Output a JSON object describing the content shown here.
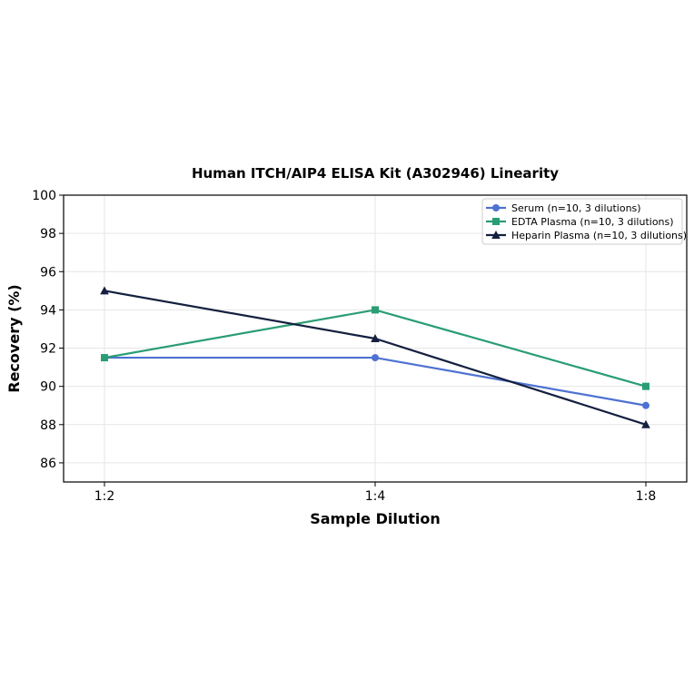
{
  "colors": {
    "serum": "#4e72d1",
    "edta": "#2a9d74",
    "heparin": "#14203f",
    "grid": "#e6e6e6",
    "axis": "#000000",
    "legend_border": "#cccccc"
  },
  "chart_data": {
    "type": "line",
    "title": "Human ITCH/AIP4 ELISA Kit (A302946) Linearity",
    "xlabel": "Sample Dilution",
    "ylabel": "Recovery (%)",
    "categories": [
      "1:2",
      "1:4",
      "1:8"
    ],
    "ylim": [
      85,
      100
    ],
    "yticks": [
      "86",
      "88",
      "90",
      "92",
      "94",
      "96",
      "98",
      "100"
    ],
    "grid": true,
    "legend_position": "top-right",
    "series": [
      {
        "name": "Serum (n=10, 3 dilutions)",
        "marker": "circle",
        "color": "#4e72d1",
        "values": [
          91.5,
          91.5,
          89
        ]
      },
      {
        "name": "EDTA Plasma (n=10, 3 dilutions)",
        "marker": "square",
        "color": "#2a9d74",
        "values": [
          91.5,
          94,
          90
        ]
      },
      {
        "name": "Heparin Plasma (n=10, 3 dilutions)",
        "marker": "triangle",
        "color": "#14203f",
        "values": [
          95,
          92.5,
          88
        ]
      }
    ]
  }
}
